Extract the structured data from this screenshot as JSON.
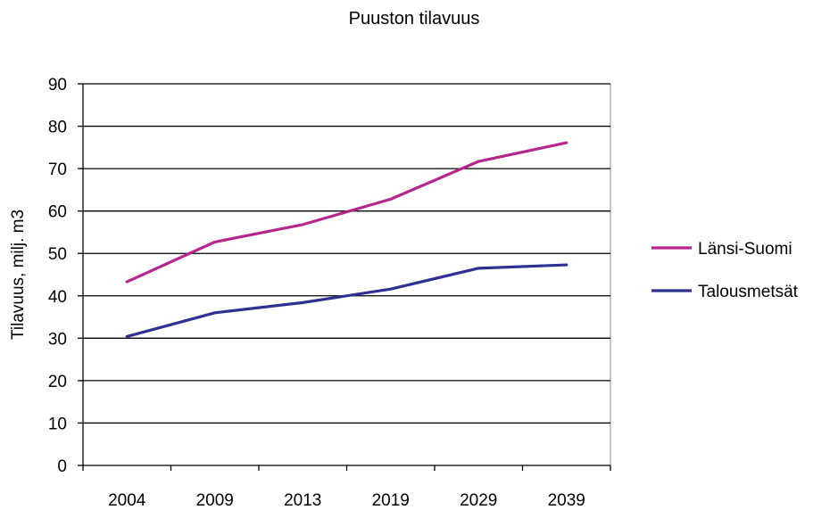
{
  "chart_data": {
    "type": "line",
    "title": "Puuston tilavuus",
    "xlabel": "",
    "ylabel": "Tilavuus, milj. m3",
    "categories": [
      "2004",
      "2009",
      "2013",
      "2019",
      "2029",
      "2039"
    ],
    "ylim": [
      0,
      90
    ],
    "yticks": [
      "0",
      "10",
      "20",
      "30",
      "40",
      "50",
      "60",
      "70",
      "80",
      "90"
    ],
    "grid": true,
    "legend_position": "right",
    "series": [
      {
        "name": "Länsi-Suomi",
        "color": "#b5278f",
        "values": [
          43.3,
          52.7,
          56.8,
          62.8,
          71.7,
          76.1
        ]
      },
      {
        "name": "Talousmetsät",
        "color": "#2e3192",
        "values": [
          30.4,
          36.0,
          38.4,
          41.6,
          46.5,
          47.3
        ]
      }
    ]
  }
}
